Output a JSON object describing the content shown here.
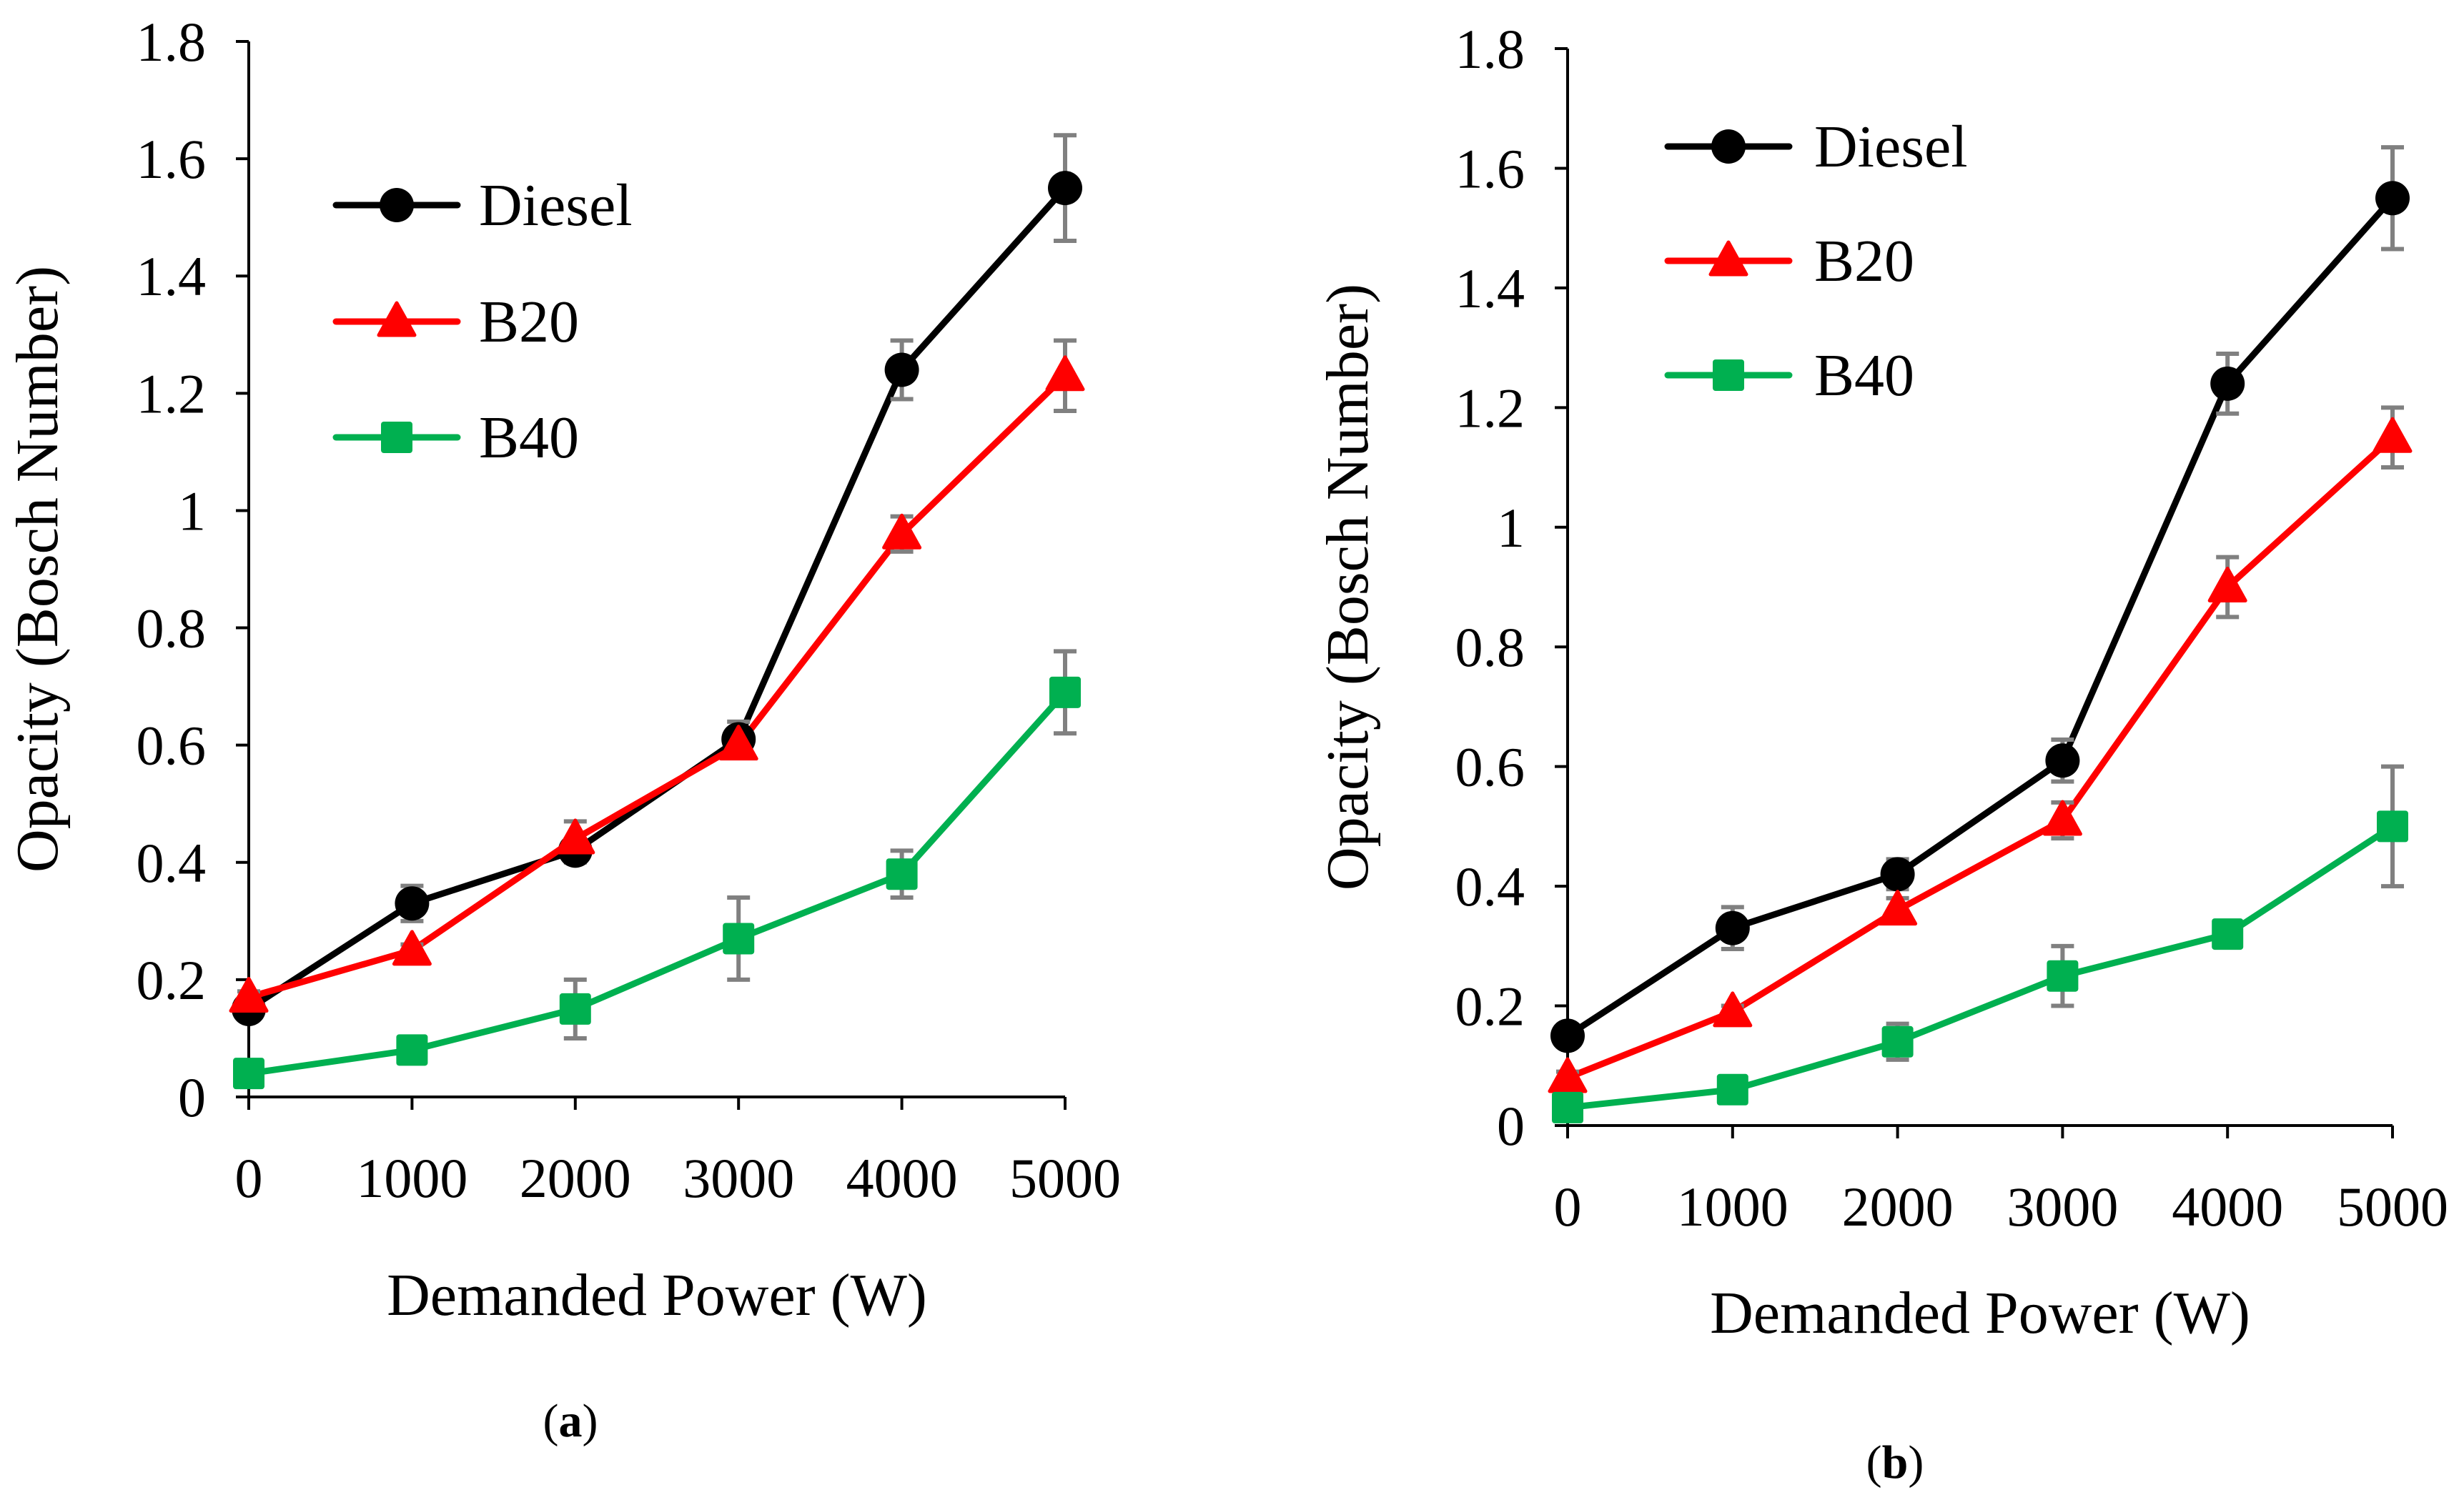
{
  "figure": {
    "colors": {
      "axis": "#000000",
      "error_bar": "#808080"
    },
    "legend_labels": [
      "Diesel",
      "B20",
      "B40"
    ]
  },
  "chart_data": [
    {
      "type": "line",
      "panel": "a",
      "caption": {
        "open": "(",
        "letter": "a",
        "close": ")"
      },
      "title": "",
      "xlabel": "Demanded Power (W)",
      "ylabel": "Opacity (Bosch Number)",
      "x": [
        0,
        1000,
        2000,
        3000,
        4000,
        5000
      ],
      "xlim": [
        0,
        5000
      ],
      "ylim": [
        0,
        1.8
      ],
      "x_ticks": [
        "0",
        "1000",
        "2000",
        "3000",
        "4000",
        "5000"
      ],
      "y_ticks": [
        "0",
        "0.2",
        "0.4",
        "0.6",
        "0.8",
        "1",
        "1.2",
        "1.4",
        "1.6",
        "1.8"
      ],
      "grid": false,
      "legend_position": "top-left",
      "series": [
        {
          "name": "Diesel",
          "color": "#000000",
          "marker": "circle",
          "values": [
            0.15,
            0.33,
            0.42,
            0.61,
            1.24,
            1.55
          ],
          "errors": [
            0.01,
            0.03,
            0.02,
            0.03,
            0.05,
            0.09
          ]
        },
        {
          "name": "B20",
          "color": "#ff0000",
          "marker": "triangle",
          "values": [
            0.17,
            0.25,
            0.44,
            0.6,
            0.96,
            1.23
          ],
          "errors": [
            0.01,
            0.01,
            0.03,
            0.01,
            0.03,
            0.06
          ]
        },
        {
          "name": "B40",
          "color": "#00b050",
          "marker": "square",
          "values": [
            0.04,
            0.08,
            0.15,
            0.27,
            0.38,
            0.69
          ],
          "errors": [
            0.01,
            0.02,
            0.05,
            0.07,
            0.04,
            0.07
          ]
        }
      ]
    },
    {
      "type": "line",
      "panel": "b",
      "caption": {
        "open": "(",
        "letter": "b",
        "close": ")"
      },
      "title": "",
      "xlabel": "Demanded Power (W)",
      "ylabel": "Opacity (Bosch Number)",
      "x": [
        0,
        1000,
        2000,
        3000,
        4000,
        5000
      ],
      "xlim": [
        0,
        5000
      ],
      "ylim": [
        0,
        1.8
      ],
      "x_ticks": [
        "0",
        "1000",
        "2000",
        "3000",
        "4000",
        "5000"
      ],
      "y_ticks": [
        "0",
        "0.2",
        "0.4",
        "0.6",
        "0.8",
        "1",
        "1.2",
        "1.4",
        "1.6",
        "1.8"
      ],
      "grid": false,
      "legend_position": "top-left",
      "series": [
        {
          "name": "Diesel",
          "color": "#000000",
          "marker": "circle",
          "values": [
            0.15,
            0.33,
            0.42,
            0.61,
            1.24,
            1.55
          ],
          "errors": [
            0.01,
            0.035,
            0.025,
            0.035,
            0.05,
            0.085
          ]
        },
        {
          "name": "B20",
          "color": "#ff0000",
          "marker": "triangle",
          "values": [
            0.08,
            0.19,
            0.36,
            0.51,
            0.9,
            1.15
          ],
          "errors": [
            0.01,
            0.01,
            0.02,
            0.03,
            0.05,
            0.05
          ]
        },
        {
          "name": "B40",
          "color": "#00b050",
          "marker": "square",
          "values": [
            0.03,
            0.06,
            0.14,
            0.25,
            0.32,
            0.5
          ],
          "errors": [
            0.01,
            0.01,
            0.03,
            0.05,
            0.02,
            0.1
          ]
        }
      ]
    }
  ]
}
